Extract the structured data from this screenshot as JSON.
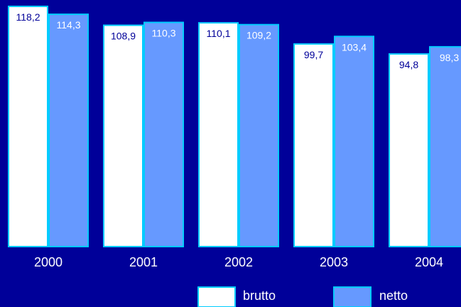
{
  "chart_data": {
    "type": "bar",
    "categories": [
      "2000",
      "2001",
      "2002",
      "2003",
      "2004"
    ],
    "series": [
      {
        "name": "brutto",
        "values": [
          118.2,
          108.9,
          110.1,
          99.7,
          94.8
        ],
        "labels": [
          "118,2",
          "108,9",
          "110,1",
          "99,7",
          "94,8"
        ]
      },
      {
        "name": "netto",
        "values": [
          114.3,
          110.3,
          109.2,
          103.4,
          98.3
        ],
        "labels": [
          "114,3",
          "110,3",
          "109,2",
          "103,4",
          "98,3"
        ]
      }
    ],
    "title": "",
    "xlabel": "",
    "ylabel": "",
    "legend_position": "bottom-right",
    "grid": false
  },
  "colors": {
    "background": "#000099",
    "brutto_fill": "#ffffff",
    "netto_fill": "#6699ff",
    "bar_border": "#00ccff",
    "brutto_label": "#000099",
    "netto_label": "#ffffff",
    "axis_text": "#ffffff"
  }
}
